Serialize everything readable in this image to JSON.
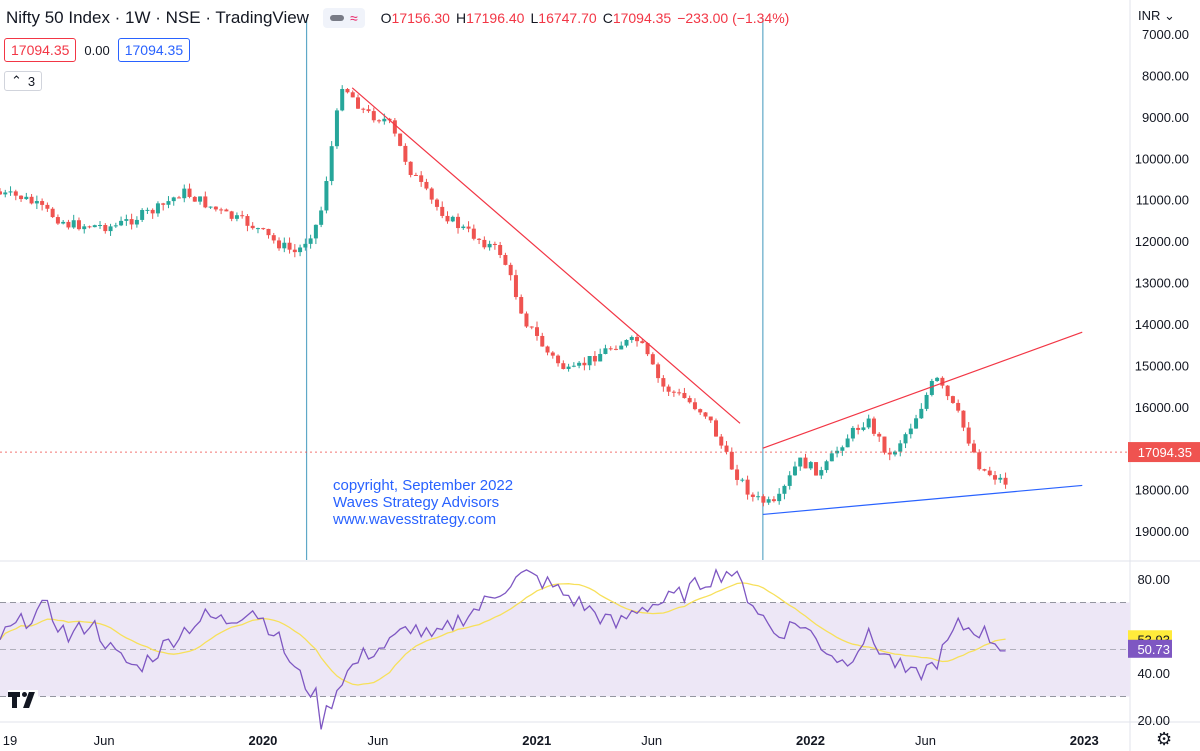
{
  "header": {
    "title": "Nifty 50 Index · 1W · NSE · TradingView",
    "ohlc": {
      "open_label": "O",
      "open": "17156.30",
      "high_label": "H",
      "high": "17196.40",
      "low_label": "L",
      "low": "16747.70",
      "close_label": "C",
      "close": "17094.35",
      "change": "−233.00 (−1.34%)"
    },
    "bid": "17094.35",
    "spread": "0.00",
    "ask": "17094.35",
    "collapsed_count": "3"
  },
  "currency": "INR",
  "annotation": {
    "line1": "copyright, September 2022",
    "line2": "Waves Strategy Advisors",
    "line3": "www.wavesstrategy.com"
  },
  "colors": {
    "up": "#26a69a",
    "down": "#ef5350",
    "trend_red": "#f23645",
    "trend_blue": "#2962ff",
    "vline": "#5fa8c7",
    "rsi_line": "#7e57c2",
    "rsi_ma": "#f7e05a",
    "rsi_band": "#ede7f6"
  },
  "chart_data": [
    {
      "type": "candlestick",
      "price_scale": "inverted",
      "ylim": [
        7000,
        19500
      ],
      "y_ticks": [
        "7000.00",
        "8000.00",
        "9000.00",
        "10000.00",
        "11000.00",
        "12000.00",
        "13000.00",
        "14000.00",
        "15000.00",
        "16000.00",
        "17000.00",
        "18000.00",
        "19000.00"
      ],
      "last_price_label": "17094.35",
      "x_ticks": [
        "19",
        "Jun",
        "2020",
        "Jun",
        "2021",
        "Jun",
        "2022",
        "Jun",
        "2023"
      ],
      "anchors": [
        {
          "date": "2019-01",
          "close": 10800
        },
        {
          "date": "2019-03",
          "close": 10950
        },
        {
          "date": "2019-05",
          "close": 11600
        },
        {
          "date": "2019-07",
          "close": 11650
        },
        {
          "date": "2019-09",
          "close": 11200
        },
        {
          "date": "2019-10",
          "close": 10800
        },
        {
          "date": "2019-12",
          "close": 11400
        },
        {
          "date": "2020-01",
          "close": 11600
        },
        {
          "date": "2020-02",
          "close": 12000
        },
        {
          "date": "2020-03",
          "close": 12300
        },
        {
          "date": "2020-04",
          "close": 11500
        },
        {
          "date": "2020-05",
          "close": 8200
        },
        {
          "date": "2020-06",
          "close": 8900
        },
        {
          "date": "2020-07",
          "close": 9100
        },
        {
          "date": "2020-08",
          "close": 10300
        },
        {
          "date": "2020-09",
          "close": 11100
        },
        {
          "date": "2020-10",
          "close": 11600
        },
        {
          "date": "2020-12",
          "close": 12300
        },
        {
          "date": "2021-01",
          "close": 13900
        },
        {
          "date": "2021-02",
          "close": 14700
        },
        {
          "date": "2021-03",
          "close": 15200
        },
        {
          "date": "2021-04",
          "close": 14800
        },
        {
          "date": "2021-05",
          "close": 14500
        },
        {
          "date": "2021-06",
          "close": 14400
        },
        {
          "date": "2021-07",
          "close": 15500
        },
        {
          "date": "2021-08",
          "close": 15800
        },
        {
          "date": "2021-09",
          "close": 16200
        },
        {
          "date": "2021-10",
          "close": 17400
        },
        {
          "date": "2021-11",
          "close": 18200
        },
        {
          "date": "2021-12",
          "close": 18400
        },
        {
          "date": "2022-01",
          "close": 17300
        },
        {
          "date": "2022-02",
          "close": 17600
        },
        {
          "date": "2022-03",
          "close": 16800
        },
        {
          "date": "2022-04",
          "close": 16300
        },
        {
          "date": "2022-05",
          "close": 17200
        },
        {
          "date": "2022-06",
          "close": 16400
        },
        {
          "date": "2022-07",
          "close": 15300
        },
        {
          "date": "2022-08",
          "close": 16200
        },
        {
          "date": "2022-09",
          "close": 17500
        },
        {
          "date": "2022-10",
          "close": 17800
        },
        {
          "date": "2022-11",
          "close": 18000
        },
        {
          "date": "2022-12",
          "close": 17100
        }
      ],
      "trendlines": [
        {
          "color": "red",
          "from": {
            "date": "2020-05",
            "price": 8300
          },
          "to": {
            "date": "2021-10",
            "price": 16400
          }
        },
        {
          "color": "red",
          "from": {
            "date": "2021-11",
            "price": 17000
          },
          "to": {
            "date": "2023-01",
            "price": 14200
          }
        },
        {
          "color": "blue",
          "from": {
            "date": "2021-11",
            "price": 18600
          },
          "to": {
            "date": "2023-01",
            "price": 17900
          }
        }
      ],
      "vertical_markers": [
        "2020-03",
        "2021-11"
      ]
    },
    {
      "type": "line",
      "name": "RSI",
      "ylim": [
        15,
        85
      ],
      "y_ticks": [
        "80.00",
        "40.00",
        "20.00"
      ],
      "band": [
        30,
        70
      ],
      "midline": 50,
      "labels": {
        "ma_value": "53.93",
        "rsi_value": "50.73"
      },
      "rsi_anchors": [
        {
          "date": "2019-01",
          "v": 48
        },
        {
          "date": "2019-02",
          "v": 55
        },
        {
          "date": "2019-03",
          "v": 62
        },
        {
          "date": "2019-04",
          "v": 68
        },
        {
          "date": "2019-05",
          "v": 55
        },
        {
          "date": "2019-06",
          "v": 62
        },
        {
          "date": "2019-07",
          "v": 48
        },
        {
          "date": "2019-08",
          "v": 42
        },
        {
          "date": "2019-09",
          "v": 50
        },
        {
          "date": "2019-10",
          "v": 58
        },
        {
          "date": "2019-11",
          "v": 64
        },
        {
          "date": "2019-12",
          "v": 62
        },
        {
          "date": "2020-01",
          "v": 68
        },
        {
          "date": "2020-02",
          "v": 58
        },
        {
          "date": "2020-03",
          "v": 40
        },
        {
          "date": "2020-04",
          "v": 28
        },
        {
          "date": "2020-04",
          "v": 17
        },
        {
          "date": "2020-05",
          "v": 38
        },
        {
          "date": "2020-06",
          "v": 48
        },
        {
          "date": "2020-07",
          "v": 52
        },
        {
          "date": "2020-08",
          "v": 60
        },
        {
          "date": "2020-09",
          "v": 54
        },
        {
          "date": "2020-10",
          "v": 62
        },
        {
          "date": "2020-11",
          "v": 68
        },
        {
          "date": "2020-12",
          "v": 76
        },
        {
          "date": "2021-01",
          "v": 82
        },
        {
          "date": "2021-02",
          "v": 78
        },
        {
          "date": "2021-03",
          "v": 72
        },
        {
          "date": "2021-04",
          "v": 66
        },
        {
          "date": "2021-05",
          "v": 60
        },
        {
          "date": "2021-06",
          "v": 68
        },
        {
          "date": "2021-07",
          "v": 70
        },
        {
          "date": "2021-08",
          "v": 74
        },
        {
          "date": "2021-09",
          "v": 80
        },
        {
          "date": "2021-10",
          "v": 84
        },
        {
          "date": "2021-11",
          "v": 70
        },
        {
          "date": "2021-12",
          "v": 56
        },
        {
          "date": "2022-01",
          "v": 62
        },
        {
          "date": "2022-02",
          "v": 52
        },
        {
          "date": "2022-03",
          "v": 44
        },
        {
          "date": "2022-04",
          "v": 56
        },
        {
          "date": "2022-05",
          "v": 46
        },
        {
          "date": "2022-06",
          "v": 38
        },
        {
          "date": "2022-07",
          "v": 44
        },
        {
          "date": "2022-08",
          "v": 60
        },
        {
          "date": "2022-09",
          "v": 58
        },
        {
          "date": "2022-10",
          "v": 50.73
        }
      ]
    }
  ]
}
